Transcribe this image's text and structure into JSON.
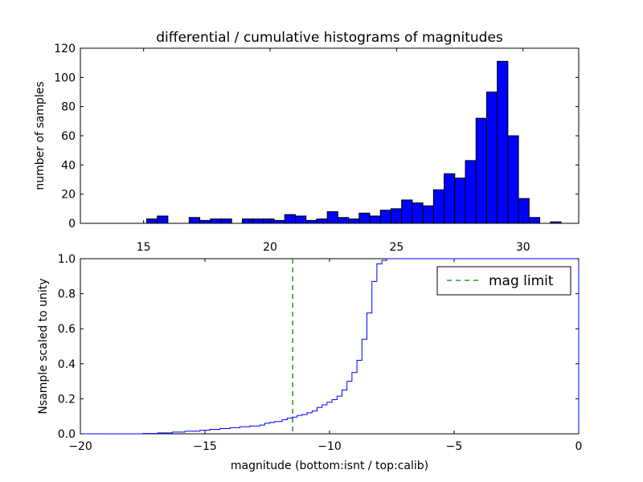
{
  "chart_data": [
    {
      "type": "bar",
      "title": "differential / cumulative histograms of magnitudes",
      "xlabel": "",
      "ylabel": "number of samples",
      "xlim": [
        12.5,
        32.2
      ],
      "ylim": [
        0,
        120
      ],
      "xticks": [
        15,
        20,
        25,
        30
      ],
      "yticks": [
        0,
        20,
        40,
        60,
        80,
        100,
        120
      ],
      "bar_color": "#0000ff",
      "bins": [
        {
          "left": 15.12,
          "right": 15.54,
          "value": 3
        },
        {
          "left": 15.54,
          "right": 15.96,
          "value": 5
        },
        {
          "left": 16.8,
          "right": 17.22,
          "value": 4
        },
        {
          "left": 17.22,
          "right": 17.64,
          "value": 2
        },
        {
          "left": 17.64,
          "right": 18.06,
          "value": 3
        },
        {
          "left": 18.06,
          "right": 18.48,
          "value": 3
        },
        {
          "left": 18.9,
          "right": 19.32,
          "value": 3
        },
        {
          "left": 19.32,
          "right": 19.74,
          "value": 3
        },
        {
          "left": 19.74,
          "right": 20.16,
          "value": 3
        },
        {
          "left": 20.16,
          "right": 20.58,
          "value": 2
        },
        {
          "left": 20.58,
          "right": 21.0,
          "value": 6
        },
        {
          "left": 21.0,
          "right": 21.42,
          "value": 5
        },
        {
          "left": 21.42,
          "right": 21.84,
          "value": 2
        },
        {
          "left": 21.84,
          "right": 22.26,
          "value": 3
        },
        {
          "left": 22.26,
          "right": 22.68,
          "value": 8
        },
        {
          "left": 22.68,
          "right": 23.1,
          "value": 4
        },
        {
          "left": 23.1,
          "right": 23.52,
          "value": 3
        },
        {
          "left": 23.52,
          "right": 23.94,
          "value": 7
        },
        {
          "left": 23.94,
          "right": 24.36,
          "value": 5
        },
        {
          "left": 24.36,
          "right": 24.78,
          "value": 9
        },
        {
          "left": 24.78,
          "right": 25.2,
          "value": 10
        },
        {
          "left": 25.2,
          "right": 25.62,
          "value": 16
        },
        {
          "left": 25.62,
          "right": 26.04,
          "value": 14
        },
        {
          "left": 26.04,
          "right": 26.46,
          "value": 12
        },
        {
          "left": 26.46,
          "right": 26.88,
          "value": 23
        },
        {
          "left": 26.88,
          "right": 27.3,
          "value": 34
        },
        {
          "left": 27.3,
          "right": 27.72,
          "value": 31
        },
        {
          "left": 27.72,
          "right": 28.14,
          "value": 43
        },
        {
          "left": 28.14,
          "right": 28.56,
          "value": 72
        },
        {
          "left": 28.56,
          "right": 28.98,
          "value": 90
        },
        {
          "left": 28.98,
          "right": 29.4,
          "value": 111
        },
        {
          "left": 29.4,
          "right": 29.82,
          "value": 60
        },
        {
          "left": 29.82,
          "right": 30.24,
          "value": 17
        },
        {
          "left": 30.24,
          "right": 30.66,
          "value": 4
        },
        {
          "left": 31.08,
          "right": 31.5,
          "value": 1
        }
      ]
    },
    {
      "type": "line",
      "title": "",
      "xlabel": "magnitude (bottom:isnt / top:calib)",
      "ylabel": "Nsample scaled to unity",
      "xlim": [
        -20,
        0
      ],
      "ylim": [
        0,
        1.0
      ],
      "xticks": [
        -20,
        -15,
        -10,
        -5,
        0
      ],
      "xtick_labels": [
        "−20",
        "−15",
        "−10",
        "−5",
        "0"
      ],
      "yticks": [
        0.0,
        0.2,
        0.4,
        0.6,
        0.8,
        1.0
      ],
      "ytick_labels": [
        "0.0",
        "0.2",
        "0.4",
        "0.6",
        "0.8",
        "1.0"
      ],
      "step_color": "#0000ff",
      "step": [
        [
          -20.0,
          0.0
        ],
        [
          -17.5,
          0.002
        ],
        [
          -16.9,
          0.005
        ],
        [
          -16.3,
          0.01
        ],
        [
          -15.8,
          0.015
        ],
        [
          -15.2,
          0.02
        ],
        [
          -14.8,
          0.025
        ],
        [
          -14.4,
          0.03
        ],
        [
          -14.0,
          0.035
        ],
        [
          -13.6,
          0.04
        ],
        [
          -13.2,
          0.045
        ],
        [
          -12.8,
          0.05
        ],
        [
          -12.6,
          0.06
        ],
        [
          -12.4,
          0.065
        ],
        [
          -12.2,
          0.07
        ],
        [
          -11.9,
          0.08
        ],
        [
          -11.7,
          0.09
        ],
        [
          -11.5,
          0.095
        ],
        [
          -11.3,
          0.105
        ],
        [
          -11.1,
          0.11
        ],
        [
          -10.9,
          0.12
        ],
        [
          -10.7,
          0.13
        ],
        [
          -10.5,
          0.15
        ],
        [
          -10.3,
          0.165
        ],
        [
          -10.1,
          0.18
        ],
        [
          -9.9,
          0.195
        ],
        [
          -9.7,
          0.215
        ],
        [
          -9.5,
          0.25
        ],
        [
          -9.3,
          0.3
        ],
        [
          -9.1,
          0.35
        ],
        [
          -8.9,
          0.42
        ],
        [
          -8.7,
          0.54
        ],
        [
          -8.5,
          0.69
        ],
        [
          -8.3,
          0.87
        ],
        [
          -8.1,
          0.97
        ],
        [
          -7.9,
          0.99
        ],
        [
          -7.7,
          1.0
        ],
        [
          0.0,
          1.0
        ]
      ],
      "mag_limit": -11.48,
      "mag_limit_color": "#008000",
      "legend": {
        "entries": [
          "mag limit"
        ],
        "placement": "top-right"
      }
    }
  ]
}
